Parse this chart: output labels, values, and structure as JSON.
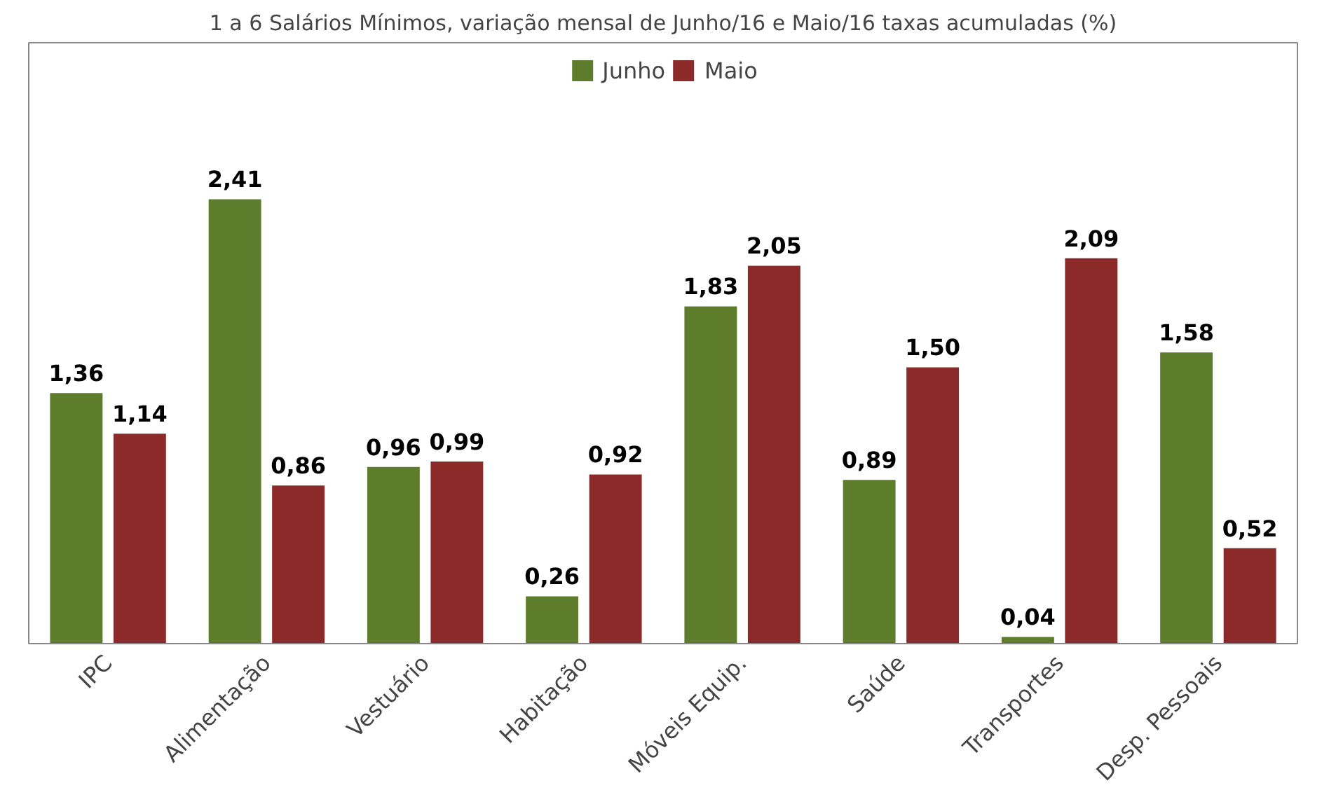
{
  "chart_data": {
    "type": "bar",
    "title": "1 a 6 Salários Mínimos, variação mensal de Junho/16 e Maio/16 taxas acumuladas (%)",
    "categories": [
      "IPC",
      "Alimentação",
      "Vestuário",
      "Habitação",
      "Móveis Equip.",
      "Saúde",
      "Transportes",
      "Desp. Pessoais"
    ],
    "series": [
      {
        "name": "Junho",
        "color": "#5e7d2c",
        "values": [
          1.36,
          2.41,
          0.96,
          0.26,
          1.83,
          0.89,
          0.04,
          1.58
        ],
        "value_labels": [
          "1,36",
          "2,41",
          "0,96",
          "0,26",
          "1,83",
          "0,89",
          "0,04",
          "1,58"
        ]
      },
      {
        "name": "Maio",
        "color": "#8c2a2a",
        "values": [
          1.14,
          0.86,
          0.99,
          0.92,
          2.05,
          1.5,
          2.09,
          0.52
        ],
        "value_labels": [
          "1,14",
          "0,86",
          "0,99",
          "0,92",
          "2,05",
          "1,50",
          "2,09",
          "0,52"
        ]
      }
    ],
    "legend": "top"
  }
}
